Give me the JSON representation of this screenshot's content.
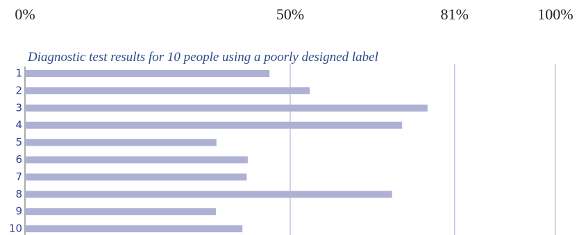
{
  "chart_data": {
    "type": "hbar",
    "title": "Diagnostic test results for 10 people using a poorly designed label",
    "categories": [
      "1",
      "2",
      "3",
      "4",
      "5",
      "6",
      "7",
      "8",
      "9",
      "10"
    ],
    "values": [
      46.1,
      53.7,
      75.9,
      71.1,
      36.1,
      42.0,
      41.8,
      69.2,
      36.0,
      41.0
    ],
    "color": "#aeb0d4",
    "xlim": [
      0,
      100
    ],
    "xticks": [
      {
        "value": 0,
        "label": "0%"
      },
      {
        "value": 50,
        "label": "50%"
      },
      {
        "value": 81,
        "label": "81%"
      },
      {
        "value": 100,
        "label": "100%"
      }
    ],
    "grid": true
  }
}
